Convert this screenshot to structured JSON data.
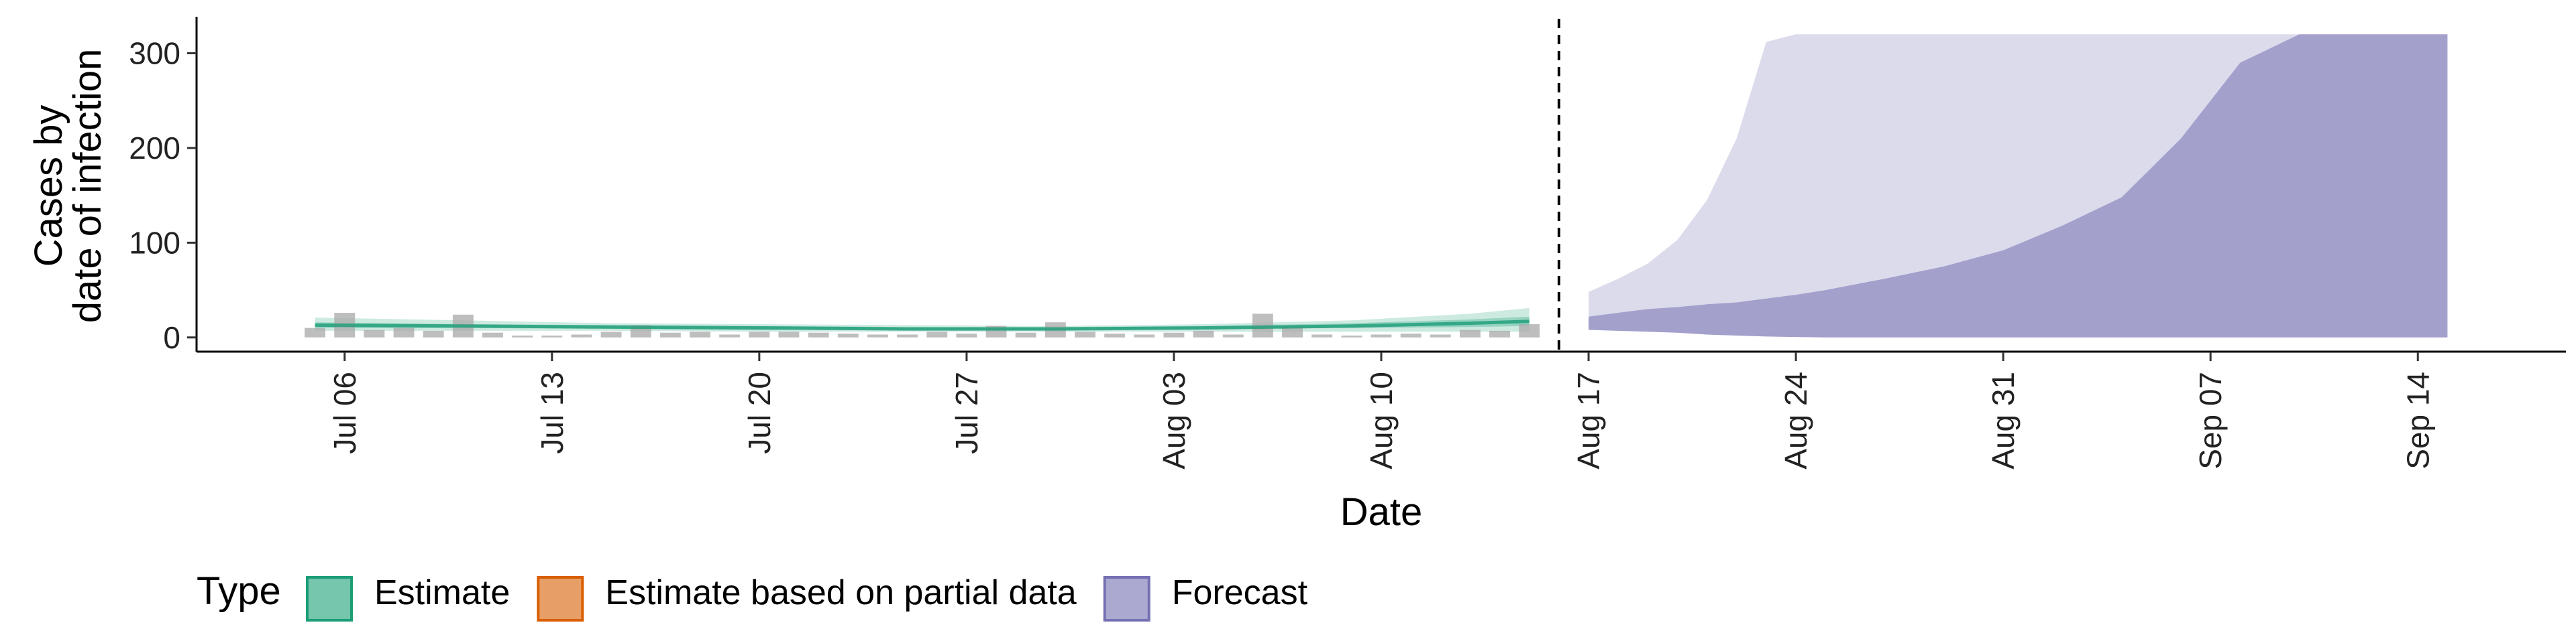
{
  "chart_data": {
    "type": "area",
    "title": "",
    "xlabel": "Date",
    "ylabel_lines": [
      "Cases by",
      "date of infection"
    ],
    "ylim": [
      -15,
      335
    ],
    "yticks": [
      0,
      100,
      200,
      300
    ],
    "xlim": [
      "2021-07-01",
      "2021-09-19"
    ],
    "xticks": [
      {
        "date": "2021-07-06",
        "label": "Jul 06"
      },
      {
        "date": "2021-07-13",
        "label": "Jul 13"
      },
      {
        "date": "2021-07-20",
        "label": "Jul 20"
      },
      {
        "date": "2021-07-27",
        "label": "Jul 27"
      },
      {
        "date": "2021-08-03",
        "label": "Aug 03"
      },
      {
        "date": "2021-08-10",
        "label": "Aug 10"
      },
      {
        "date": "2021-08-17",
        "label": "Aug 17"
      },
      {
        "date": "2021-08-24",
        "label": "Aug 24"
      },
      {
        "date": "2021-08-31",
        "label": "Aug 31"
      },
      {
        "date": "2021-09-07",
        "label": "Sep 07"
      },
      {
        "date": "2021-09-14",
        "label": "Sep 14"
      }
    ],
    "forecast_start": "2021-08-16",
    "observed_cases": {
      "dates": [
        "2021-07-05",
        "2021-07-06",
        "2021-07-07",
        "2021-07-08",
        "2021-07-09",
        "2021-07-10",
        "2021-07-11",
        "2021-07-12",
        "2021-07-13",
        "2021-07-14",
        "2021-07-15",
        "2021-07-16",
        "2021-07-17",
        "2021-07-18",
        "2021-07-19",
        "2021-07-20",
        "2021-07-21",
        "2021-07-22",
        "2021-07-23",
        "2021-07-24",
        "2021-07-25",
        "2021-07-26",
        "2021-07-27",
        "2021-07-28",
        "2021-07-29",
        "2021-07-30",
        "2021-07-31",
        "2021-08-01",
        "2021-08-02",
        "2021-08-03",
        "2021-08-04",
        "2021-08-05",
        "2021-08-06",
        "2021-08-07",
        "2021-08-08",
        "2021-08-09",
        "2021-08-10",
        "2021-08-11",
        "2021-08-12",
        "2021-08-13",
        "2021-08-14",
        "2021-08-15"
      ],
      "values": [
        10,
        26,
        8,
        10,
        7,
        24,
        5,
        2,
        2,
        3,
        6,
        13,
        5,
        6,
        3,
        6,
        6,
        5,
        4,
        3,
        3,
        6,
        4,
        12,
        5,
        16,
        6,
        4,
        3,
        5,
        7,
        3,
        25,
        12,
        3,
        2,
        3,
        4,
        3,
        8,
        7,
        14
      ]
    },
    "series": [
      {
        "name": "Estimate",
        "color": "#1b9e77",
        "dates": [
          "2021-07-05",
          "2021-07-10",
          "2021-07-15",
          "2021-07-20",
          "2021-07-25",
          "2021-07-30",
          "2021-08-04",
          "2021-08-09",
          "2021-08-13",
          "2021-08-15"
        ],
        "median": [
          13,
          12,
          11,
          10,
          9,
          9,
          10,
          12,
          15,
          17
        ],
        "inner_lower": [
          10,
          10,
          9,
          8,
          8,
          8,
          9,
          10,
          11,
          12
        ],
        "inner_upper": [
          16,
          14,
          13,
          12,
          11,
          11,
          12,
          15,
          19,
          22
        ],
        "outer_lower": [
          7,
          7,
          7,
          6,
          6,
          6,
          6,
          6,
          6,
          6
        ],
        "outer_upper": [
          21,
          18,
          15,
          14,
          13,
          12,
          14,
          18,
          25,
          31
        ]
      },
      {
        "name": "Estimate based on partial data",
        "color": "#d95f02"
      },
      {
        "name": "Forecast",
        "color": "#7570b3",
        "dates": [
          "2021-08-17",
          "2021-08-18",
          "2021-08-19",
          "2021-08-20",
          "2021-08-21",
          "2021-08-22",
          "2021-08-23",
          "2021-08-24",
          "2021-08-25",
          "2021-08-27",
          "2021-08-29",
          "2021-08-31",
          "2021-09-02",
          "2021-09-04",
          "2021-09-06",
          "2021-09-08",
          "2021-09-10",
          "2021-09-12",
          "2021-09-14",
          "2021-09-15"
        ],
        "inner_lower": [
          8,
          7,
          6,
          5,
          3,
          2,
          1,
          0.5,
          0,
          0,
          0,
          0,
          0,
          0,
          0,
          0,
          0,
          0,
          0,
          0
        ],
        "inner_upper": [
          22,
          26,
          30,
          32,
          35,
          37,
          41,
          45,
          50,
          62,
          75,
          92,
          118,
          148,
          210,
          290,
          320,
          320,
          320,
          320
        ],
        "outer_lower": [
          8,
          7,
          6,
          5,
          3,
          2,
          1,
          0.5,
          0,
          0,
          0,
          0,
          0,
          0,
          0,
          0,
          0,
          0,
          0,
          0
        ],
        "outer_upper": [
          48,
          62,
          78,
          103,
          145,
          210,
          312,
          320,
          320,
          320,
          320,
          320,
          320,
          320,
          320,
          320,
          320,
          320,
          320,
          320
        ]
      }
    ],
    "legend": {
      "title": "Type",
      "position": "bottom",
      "items": [
        {
          "label": "Estimate",
          "color": "#1b9e77"
        },
        {
          "label": "Estimate based on partial data",
          "color": "#d95f02"
        },
        {
          "label": "Forecast",
          "color": "#7570b3"
        }
      ]
    },
    "grid": false
  }
}
